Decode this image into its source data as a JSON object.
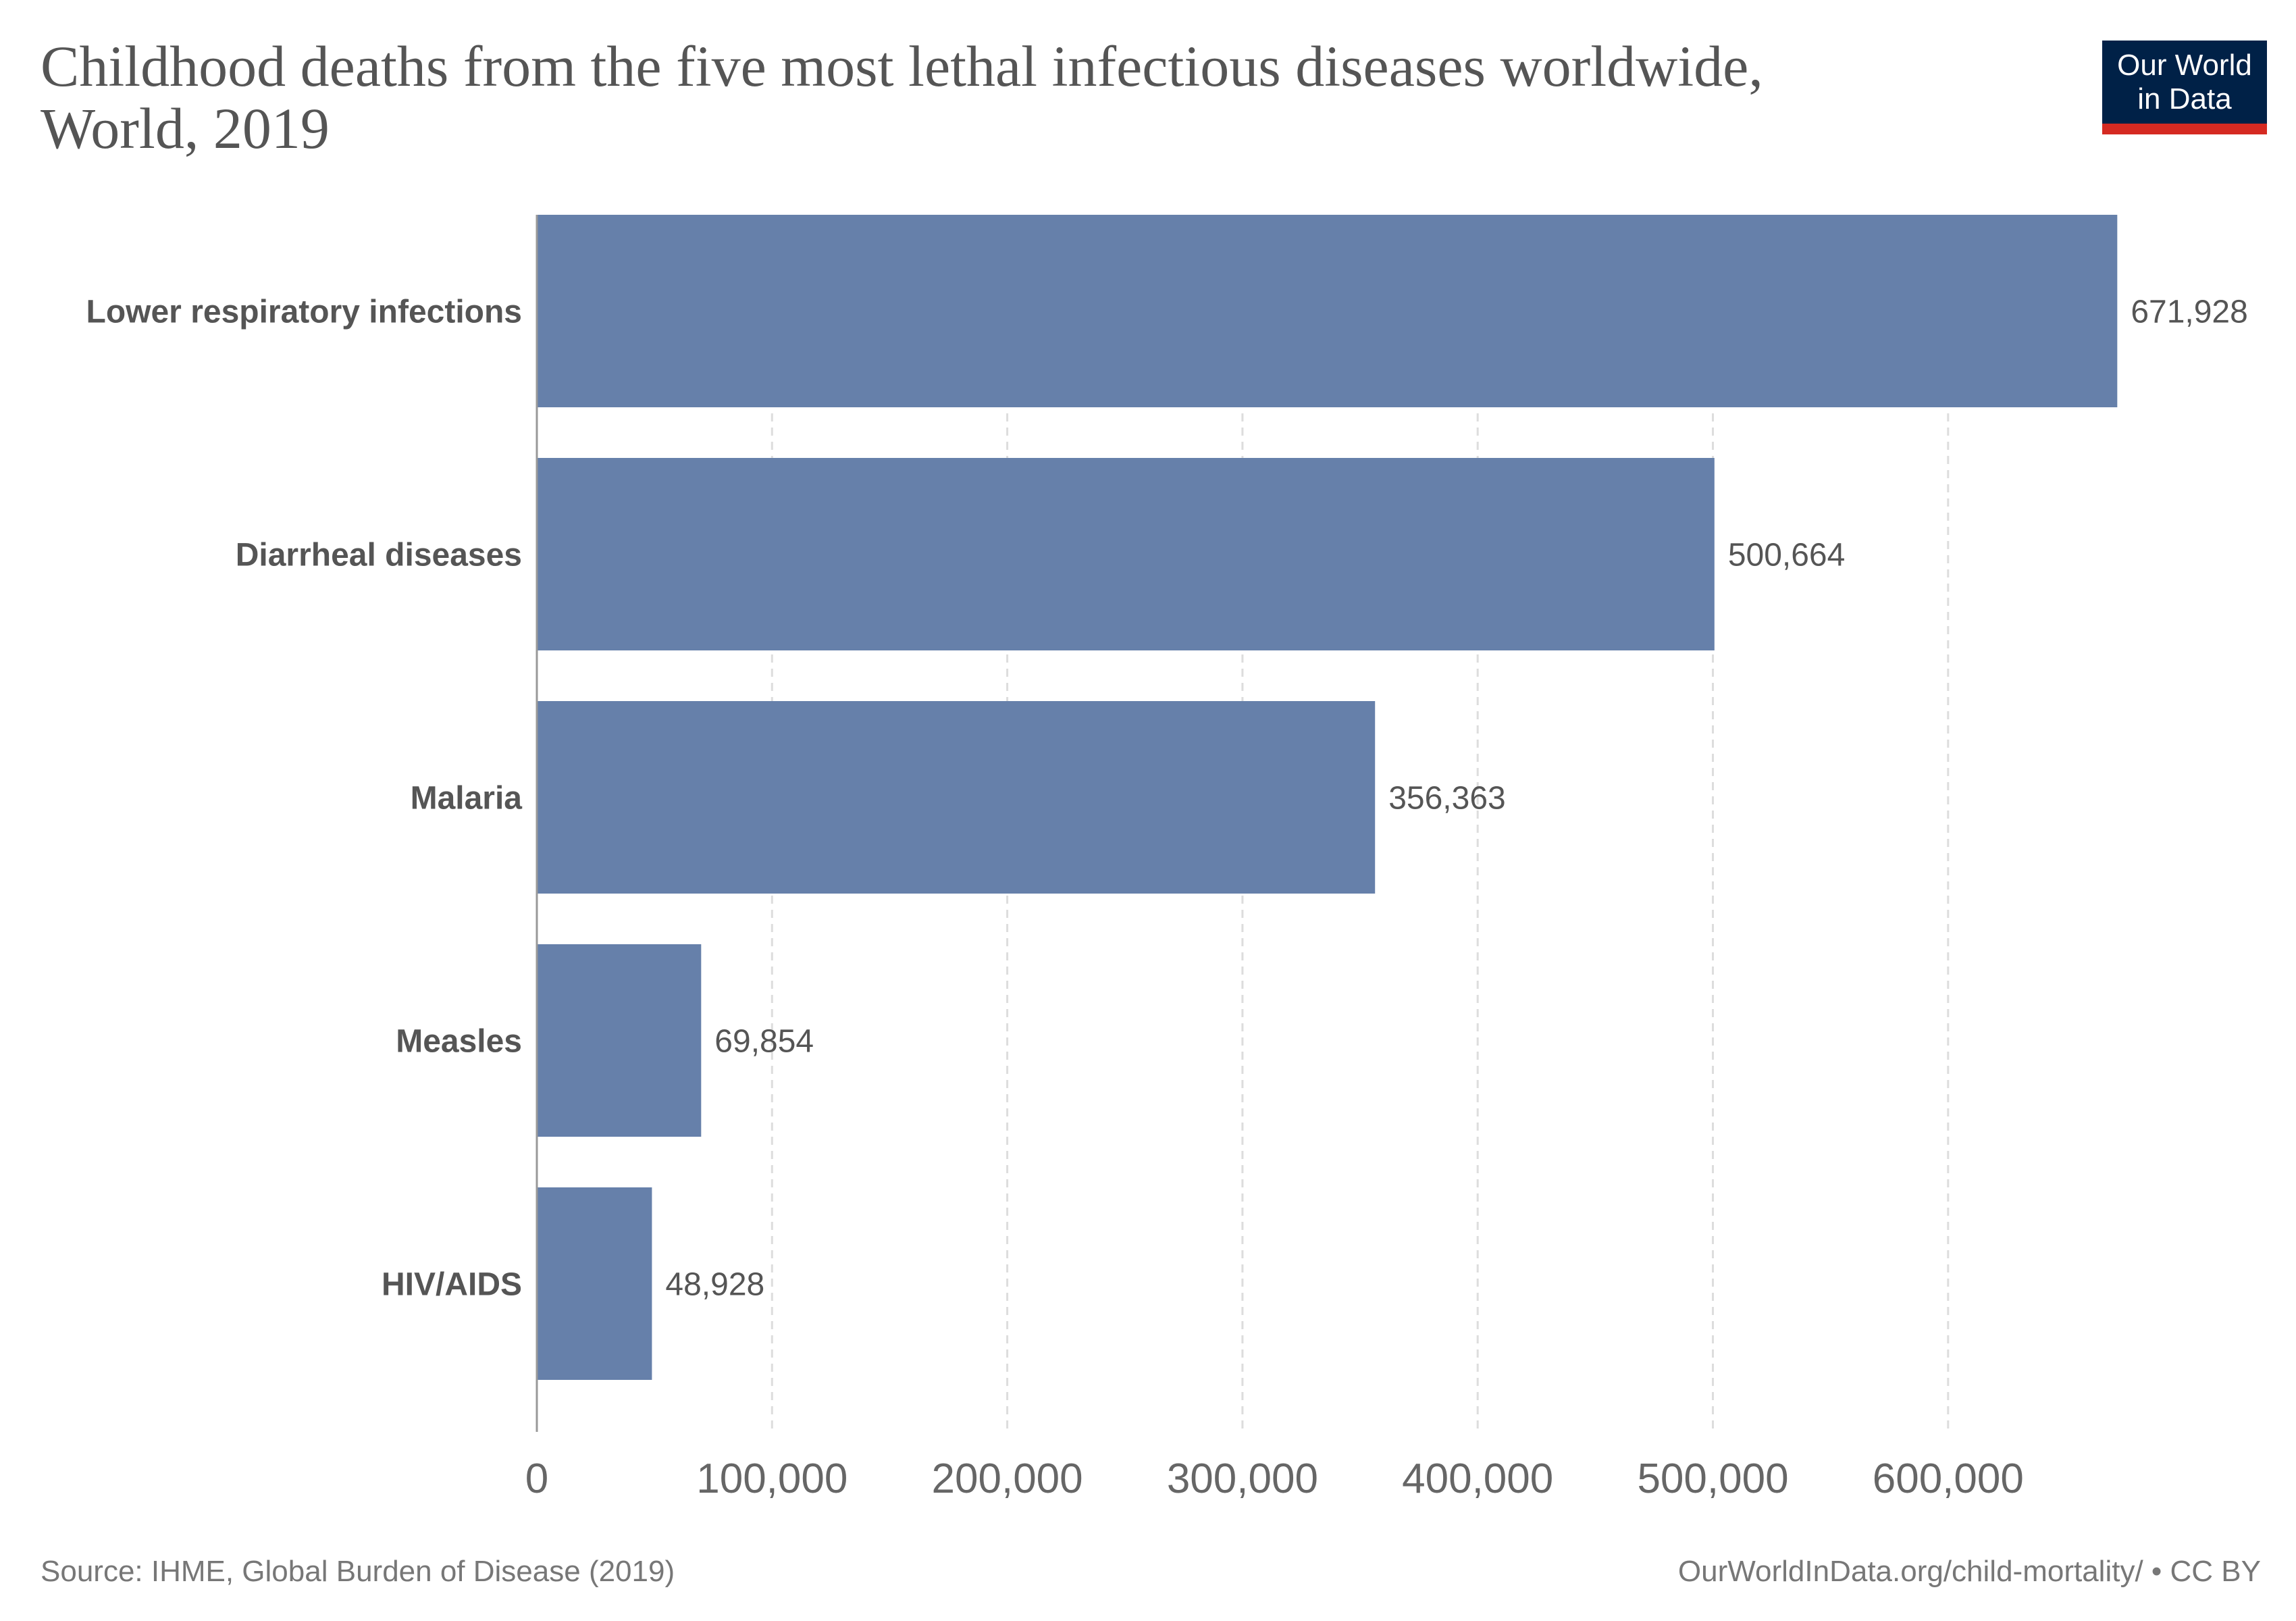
{
  "title": "Childhood deaths from the five most lethal infectious diseases worldwide, World, 2019",
  "title_lines": [
    "Childhood deaths from the five most lethal infectious diseases worldwide,",
    "World, 2019"
  ],
  "logo": {
    "line1": "Our World",
    "line2": "in Data",
    "colors": {
      "background": "#002147",
      "stripe": "#d52a22"
    }
  },
  "chart_data": {
    "type": "bar",
    "orientation": "horizontal",
    "categories": [
      "Lower respiratory infections",
      "Diarrheal diseases",
      "Malaria",
      "Measles",
      "HIV/AIDS"
    ],
    "values": [
      671928,
      500664,
      356363,
      69854,
      48928
    ],
    "value_labels": [
      "671,928",
      "500,664",
      "356,363",
      "69,854",
      "48,928"
    ],
    "xlim": [
      0,
      671928
    ],
    "xticks": [
      0,
      100000,
      200000,
      300000,
      400000,
      500000,
      600000
    ],
    "xtick_labels": [
      "0",
      "100,000",
      "200,000",
      "300,000",
      "400,000",
      "500,000",
      "600,000"
    ],
    "grid": "vertical dashed",
    "bar_color": "#6680aa"
  },
  "footer": {
    "source": "Source: IHME, Global Burden of Disease (2019)",
    "credit": "OurWorldInData.org/child-mortality/ • CC BY"
  }
}
